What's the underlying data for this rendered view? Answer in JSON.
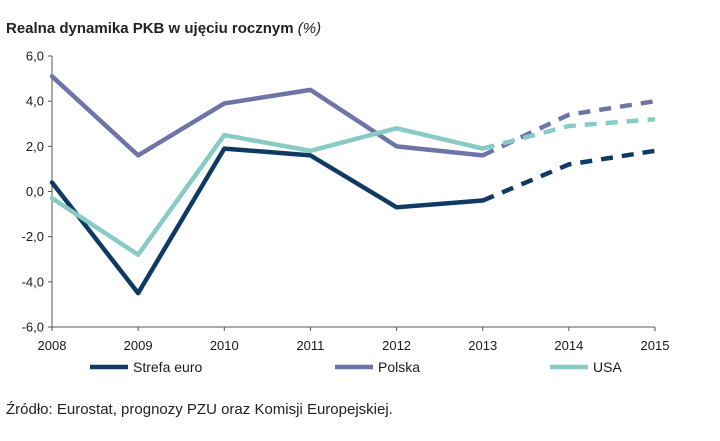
{
  "title": "Realna dynamika PKB w ujęciu rocznym",
  "title_unit": "(%)",
  "source": "Źródło: Eurostat, prognozy PZU oraz Komisji Europejskiej.",
  "chart_data": {
    "type": "line",
    "title": "Realna dynamika PKB w ujęciu rocznym (%)",
    "x": [
      "2008",
      "2009",
      "2010",
      "2011",
      "2012",
      "2013",
      "2014",
      "2015"
    ],
    "ylim": [
      -6,
      6
    ],
    "yticks": [
      "-6,0",
      "-4,0",
      "-2,0",
      "0,0",
      "2,0",
      "4,0",
      "6,0"
    ],
    "ytick_values": [
      -6,
      -4,
      -2,
      0,
      2,
      4,
      6
    ],
    "grid": false,
    "legend_position": "bottom",
    "forecast_from": "2013",
    "series": [
      {
        "name": "Strefa euro",
        "color": "#0f3a63",
        "values": [
          0.4,
          -4.5,
          1.9,
          1.6,
          -0.7,
          -0.4,
          1.2,
          1.8
        ]
      },
      {
        "name": "Polska",
        "color": "#6e73a8",
        "values": [
          5.1,
          1.6,
          3.9,
          4.5,
          2.0,
          1.6,
          3.4,
          4.0
        ]
      },
      {
        "name": "USA",
        "color": "#87cbc4",
        "values": [
          -0.3,
          -2.8,
          2.5,
          1.8,
          2.8,
          1.9,
          2.9,
          3.2
        ]
      }
    ]
  }
}
